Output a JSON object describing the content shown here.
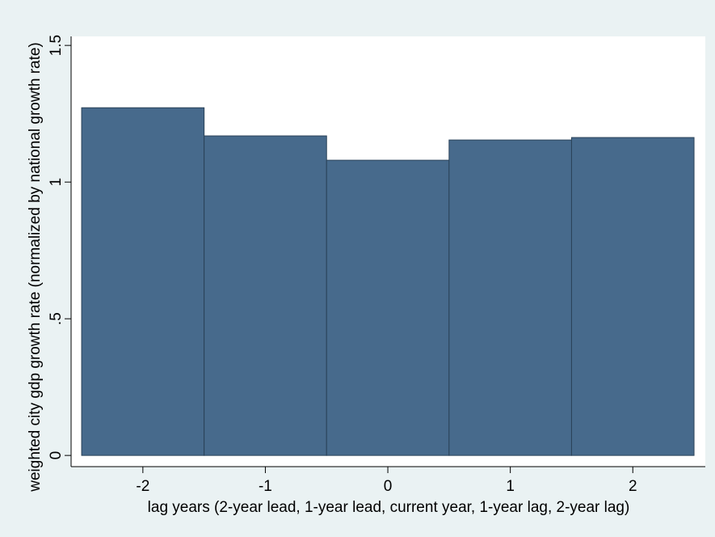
{
  "chart_data": {
    "type": "bar",
    "x": [
      -2,
      -1,
      0,
      1,
      2
    ],
    "values": [
      1.272,
      1.169,
      1.08,
      1.154,
      1.163
    ],
    "color": "#476a8c",
    "edgecolor": "#2a4258",
    "bar_width": 1,
    "xlabel": "lag years (2-year lead, 1-year lead, current year, 1-year lag, 2-year lag)",
    "ylabel": "weighted city gdp growth rate (normalized by national  growth rate)",
    "xlim": [
      -2.586,
      2.592
    ],
    "xticks": [
      -2,
      -1,
      0,
      1,
      2
    ],
    "ylim": [
      -0.041,
      1.533
    ],
    "yticks": [
      0,
      {
        "value": 0.5,
        "label": ".5"
      },
      1,
      1.5
    ],
    "grid": false
  }
}
